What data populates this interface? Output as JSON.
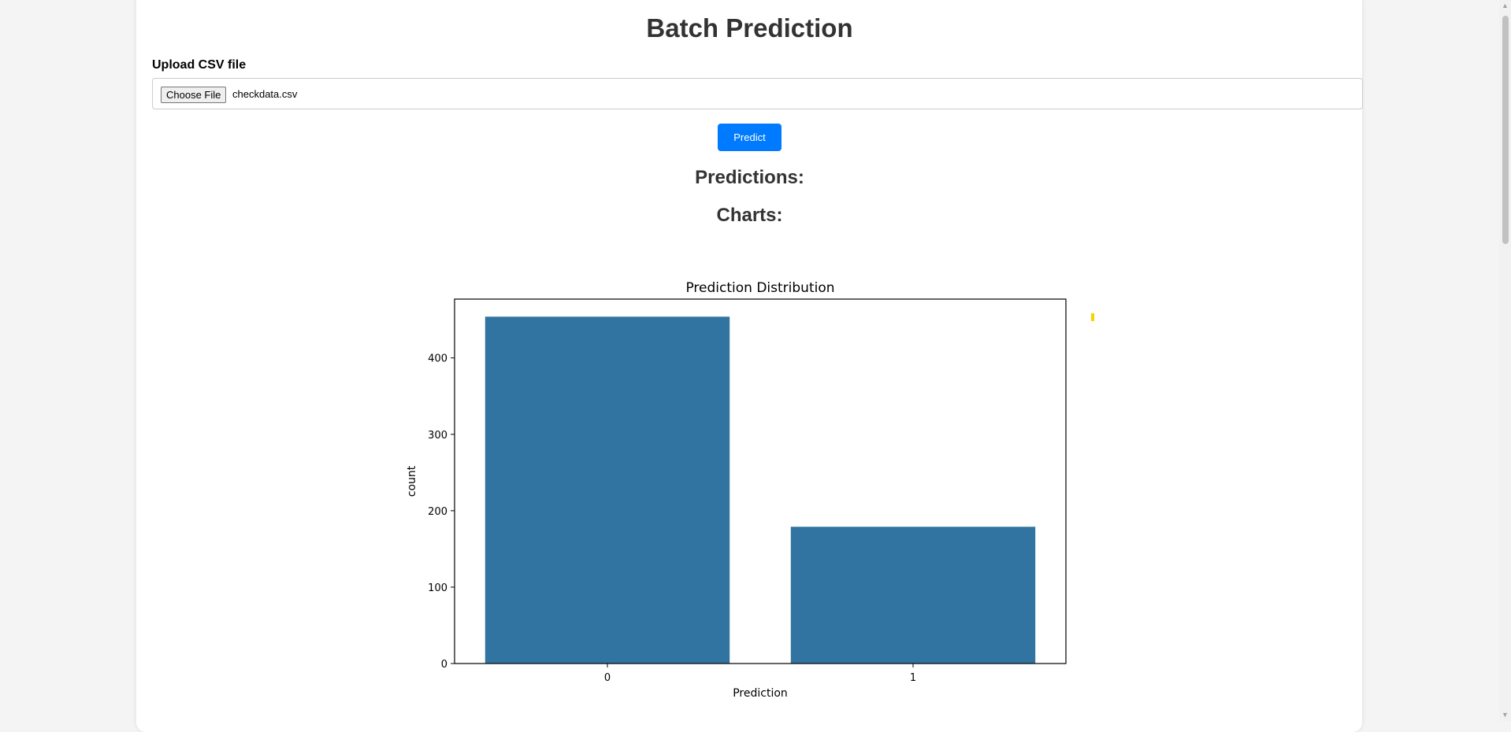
{
  "header": {
    "title": "Batch Prediction"
  },
  "upload": {
    "label": "Upload CSV file",
    "choose_button_label": "Choose File",
    "file_name": "checkdata.csv"
  },
  "actions": {
    "predict_label": "Predict"
  },
  "sections": {
    "predictions_heading": "Predictions:",
    "charts_heading": "Charts:"
  },
  "colors": {
    "primary_button": "#007bff",
    "bar_color": "#3274a1"
  },
  "scrollbar": {
    "up_icon": "triangle-up-icon",
    "down_icon": "triangle-down-icon"
  },
  "chart_data": {
    "type": "bar",
    "title": "Prediction Distribution",
    "xlabel": "Prediction",
    "ylabel": "count",
    "categories": [
      "0",
      "1"
    ],
    "values": [
      454,
      179
    ],
    "ylim": [
      0,
      477
    ],
    "yticks": [
      0,
      100,
      200,
      300,
      400
    ],
    "grid": false
  }
}
